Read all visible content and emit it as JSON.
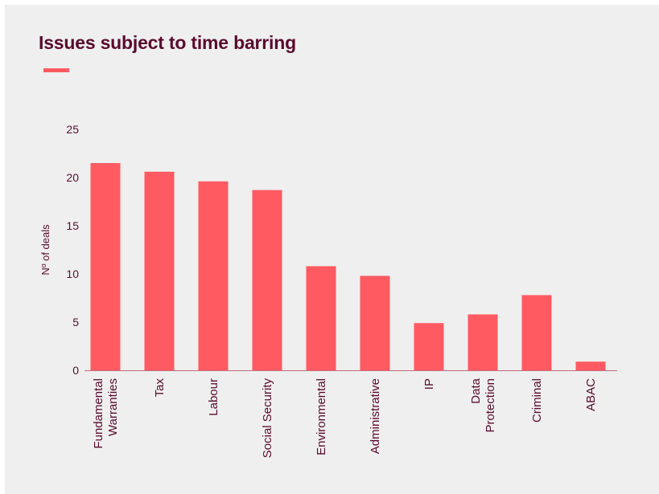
{
  "chart_data": {
    "type": "bar",
    "title": "Issues subject to time barring",
    "ylabel": "Nº of deals",
    "xlabel": "",
    "ylim": [
      0,
      25
    ],
    "yticks": [
      0,
      5,
      10,
      15,
      20,
      25
    ],
    "categories": [
      [
        "Fundamental",
        "Warranties"
      ],
      [
        "Tax"
      ],
      [
        "Labour"
      ],
      [
        "Social Security"
      ],
      [
        "Environmental"
      ],
      [
        "Administrative"
      ],
      [
        "IP"
      ],
      [
        "Data",
        "Protection"
      ],
      [
        "Criminal"
      ],
      [
        "ABAC"
      ]
    ],
    "values": [
      21.5,
      20.6,
      19.6,
      18.7,
      10.8,
      9.8,
      4.9,
      5.8,
      7.8,
      0.9
    ],
    "grid": false,
    "colors": {
      "bar": "#ff5a62",
      "text": "#5a0a2e",
      "axis": "#c46a7a",
      "background": "#efefef",
      "accent": "#ff5a62"
    }
  }
}
